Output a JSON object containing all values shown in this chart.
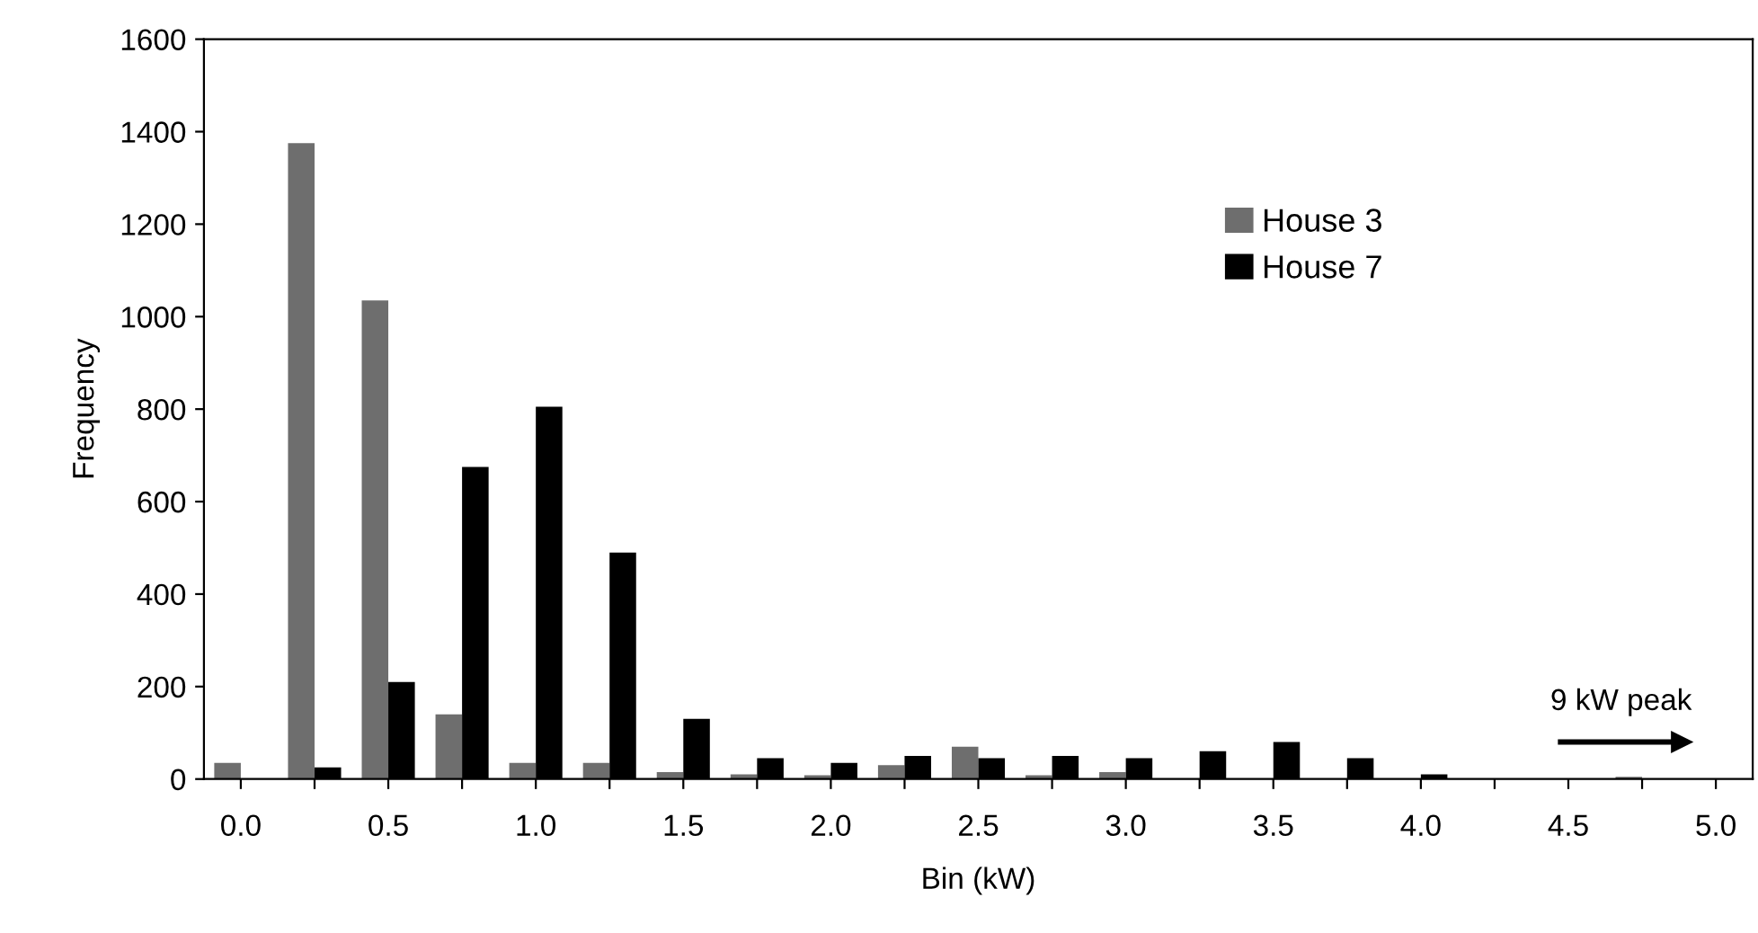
{
  "chart_data": {
    "type": "bar",
    "xlabel": "Bin (kW)",
    "ylabel": "Frequency",
    "categories": [
      "0.0",
      null,
      "0.5",
      null,
      "1.0",
      null,
      "1.5",
      null,
      "2.0",
      null,
      "2.5",
      null,
      "3.0",
      null,
      "3.5",
      null,
      "4.0",
      null,
      "4.5",
      null,
      "5.0"
    ],
    "series": [
      {
        "name": "House 3",
        "color": "#6e6e6e",
        "values": [
          35,
          1375,
          1035,
          140,
          35,
          35,
          15,
          10,
          8,
          30,
          70,
          8,
          15,
          0,
          0,
          0,
          0,
          0,
          0,
          5,
          0
        ]
      },
      {
        "name": "House 7",
        "color": "#000000",
        "values": [
          0,
          25,
          210,
          675,
          805,
          490,
          130,
          45,
          35,
          50,
          45,
          50,
          45,
          60,
          80,
          45,
          10,
          0,
          0,
          0,
          0
        ]
      }
    ],
    "ylim": [
      0,
      1600
    ],
    "yticks": [
      0,
      200,
      400,
      600,
      800,
      1000,
      1200,
      1400,
      1600
    ],
    "grid": false,
    "legend": "right",
    "annotations": [
      "9 kW peak"
    ]
  }
}
